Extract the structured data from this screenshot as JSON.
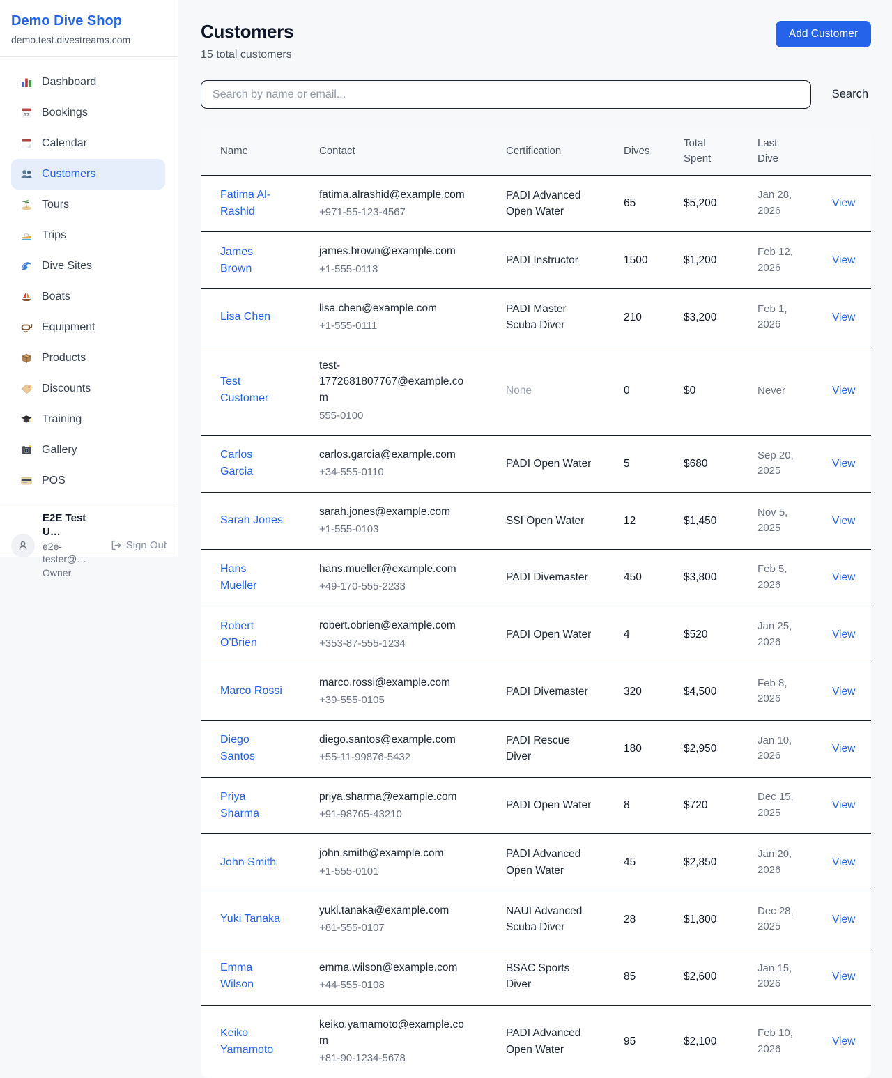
{
  "colors": {
    "accent": "#2563eb",
    "active_item_bg": "#e7eefb",
    "row_border": "#161d29",
    "header_bg": "#f8f9fb",
    "page_bg": "#f7f8fa"
  },
  "sidebar": {
    "title": "Demo Dive Shop",
    "domain": "demo.test.divestreams.com",
    "items": [
      {
        "label": "Dashboard",
        "icon": "bar-chart",
        "active": false
      },
      {
        "label": "Bookings",
        "icon": "calendar-date",
        "active": false
      },
      {
        "label": "Calendar",
        "icon": "tear-calendar",
        "active": false
      },
      {
        "label": "Customers",
        "icon": "people",
        "active": true
      },
      {
        "label": "Tours",
        "icon": "island",
        "active": false
      },
      {
        "label": "Trips",
        "icon": "speedboat",
        "active": false
      },
      {
        "label": "Dive Sites",
        "icon": "wave",
        "active": false
      },
      {
        "label": "Boats",
        "icon": "sailboat",
        "active": false
      },
      {
        "label": "Equipment",
        "icon": "diving-mask",
        "active": false
      },
      {
        "label": "Products",
        "icon": "package",
        "active": false
      },
      {
        "label": "Discounts",
        "icon": "tag",
        "active": false
      },
      {
        "label": "Training",
        "icon": "graduation-cap",
        "active": false
      },
      {
        "label": "Gallery",
        "icon": "camera",
        "active": false
      },
      {
        "label": "POS",
        "icon": "credit-card",
        "active": false
      }
    ],
    "user": {
      "name": "E2E Test U…",
      "email": "e2e-tester@…",
      "role": "Owner",
      "signout_label": "Sign Out"
    }
  },
  "header": {
    "title": "Customers",
    "subtitle": "15 total customers",
    "add_button": "Add Customer"
  },
  "search": {
    "placeholder": "Search by name or email...",
    "button": "Search"
  },
  "table": {
    "columns": [
      "Name",
      "Contact",
      "Certification",
      "Dives",
      "Total Spent",
      "Last Dive"
    ],
    "view_label": "View",
    "rows": [
      {
        "name": "Fatima Al-Rashid",
        "email": "fatima.alrashid@example.com",
        "phone": "+971-55-123-4567",
        "certification": "PADI Advanced Open Water",
        "dives": "65",
        "total_spent": "$5,200",
        "last_dive": "Jan 28, 2026"
      },
      {
        "name": "James Brown",
        "email": "james.brown@example.com",
        "phone": "+1-555-0113",
        "certification": "PADI Instructor",
        "dives": "1500",
        "total_spent": "$1,200",
        "last_dive": "Feb 12, 2026"
      },
      {
        "name": "Lisa Chen",
        "email": "lisa.chen@example.com",
        "phone": "+1-555-0111",
        "certification": "PADI Master Scuba Diver",
        "dives": "210",
        "total_spent": "$3,200",
        "last_dive": "Feb 1, 2026"
      },
      {
        "name": "Test Customer",
        "email": "test-1772681807767@example.com",
        "phone": "555-0100",
        "certification": "None",
        "dives": "0",
        "total_spent": "$0",
        "last_dive": "Never"
      },
      {
        "name": "Carlos Garcia",
        "email": "carlos.garcia@example.com",
        "phone": "+34-555-0110",
        "certification": "PADI Open Water",
        "dives": "5",
        "total_spent": "$680",
        "last_dive": "Sep 20, 2025"
      },
      {
        "name": "Sarah Jones",
        "email": "sarah.jones@example.com",
        "phone": "+1-555-0103",
        "certification": "SSI Open Water",
        "dives": "12",
        "total_spent": "$1,450",
        "last_dive": "Nov 5, 2025"
      },
      {
        "name": "Hans Mueller",
        "email": "hans.mueller@example.com",
        "phone": "+49-170-555-2233",
        "certification": "PADI Divemaster",
        "dives": "450",
        "total_spent": "$3,800",
        "last_dive": "Feb 5, 2026"
      },
      {
        "name": "Robert O'Brien",
        "email": "robert.obrien@example.com",
        "phone": "+353-87-555-1234",
        "certification": "PADI Open Water",
        "dives": "4",
        "total_spent": "$520",
        "last_dive": "Jan 25, 2026"
      },
      {
        "name": "Marco Rossi",
        "email": "marco.rossi@example.com",
        "phone": "+39-555-0105",
        "certification": "PADI Divemaster",
        "dives": "320",
        "total_spent": "$4,500",
        "last_dive": "Feb 8, 2026"
      },
      {
        "name": "Diego Santos",
        "email": "diego.santos@example.com",
        "phone": "+55-11-99876-5432",
        "certification": "PADI Rescue Diver",
        "dives": "180",
        "total_spent": "$2,950",
        "last_dive": "Jan 10, 2026"
      },
      {
        "name": "Priya Sharma",
        "email": "priya.sharma@example.com",
        "phone": "+91-98765-43210",
        "certification": "PADI Open Water",
        "dives": "8",
        "total_spent": "$720",
        "last_dive": "Dec 15, 2025"
      },
      {
        "name": "John Smith",
        "email": "john.smith@example.com",
        "phone": "+1-555-0101",
        "certification": "PADI Advanced Open Water",
        "dives": "45",
        "total_spent": "$2,850",
        "last_dive": "Jan 20, 2026"
      },
      {
        "name": "Yuki Tanaka",
        "email": "yuki.tanaka@example.com",
        "phone": "+81-555-0107",
        "certification": "NAUI Advanced Scuba Diver",
        "dives": "28",
        "total_spent": "$1,800",
        "last_dive": "Dec 28, 2025"
      },
      {
        "name": "Emma Wilson",
        "email": "emma.wilson@example.com",
        "phone": "+44-555-0108",
        "certification": "BSAC Sports Diver",
        "dives": "85",
        "total_spent": "$2,600",
        "last_dive": "Jan 15, 2026"
      },
      {
        "name": "Keiko Yamamoto",
        "email": "keiko.yamamoto@example.com",
        "phone": "+81-90-1234-5678",
        "certification": "PADI Advanced Open Water",
        "dives": "95",
        "total_spent": "$2,100",
        "last_dive": "Feb 10, 2026"
      }
    ]
  }
}
